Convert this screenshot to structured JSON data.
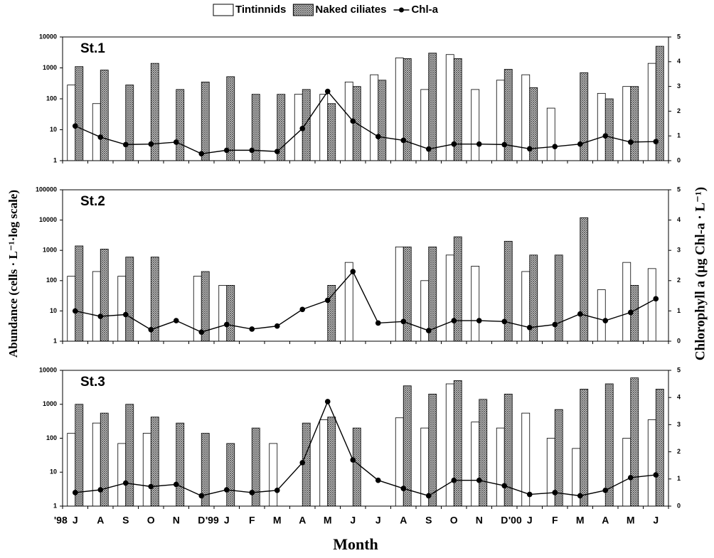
{
  "chart_data": {
    "type": "bar-line",
    "xlabel": "Month",
    "ylabel": "Abundance (cells · L⁻¹·log scale)",
    "y2label": "Chlorophyll a (μg Chl-a · L⁻¹)",
    "log_scale": true,
    "categories": [
      "J",
      "A",
      "S",
      "O",
      "N",
      "D",
      "J",
      "F",
      "M",
      "A",
      "M",
      "J",
      "J",
      "A",
      "S",
      "O",
      "N",
      "D",
      "J",
      "F",
      "M",
      "A",
      "M",
      "J"
    ],
    "year_marks": [
      "'98",
      null,
      null,
      null,
      null,
      null,
      "'99",
      null,
      null,
      null,
      null,
      null,
      null,
      null,
      null,
      null,
      null,
      null,
      "'00",
      null,
      null,
      null,
      null,
      null
    ],
    "series": [
      {
        "name": "Tintinnids",
        "kind": "bar",
        "color": "#ffffff",
        "values": [
          [
            280,
            70,
            null,
            null,
            null,
            null,
            null,
            null,
            null,
            140,
            140,
            350,
            600,
            2100,
            200,
            2700,
            200,
            400,
            600,
            50,
            null,
            150,
            250,
            1400
          ],
          [
            140,
            200,
            140,
            null,
            null,
            140,
            70,
            null,
            null,
            null,
            null,
            400,
            null,
            1300,
            100,
            700,
            300,
            null,
            200,
            null,
            null,
            50,
            400,
            250
          ],
          [
            140,
            280,
            70,
            140,
            null,
            null,
            null,
            null,
            70,
            null,
            350,
            null,
            null,
            400,
            200,
            4000,
            300,
            200,
            550,
            100,
            50,
            null,
            100,
            350
          ]
        ]
      },
      {
        "name": "Naked ciliates",
        "kind": "hatched-bar",
        "color": "#555555",
        "values": [
          [
            1100,
            850,
            280,
            1400,
            200,
            350,
            520,
            140,
            140,
            200,
            70,
            250,
            400,
            2000,
            3000,
            2000,
            null,
            900,
            230,
            null,
            700,
            100,
            250,
            5000
          ],
          [
            1400,
            1100,
            600,
            600,
            null,
            200,
            70,
            null,
            null,
            null,
            70,
            null,
            null,
            1300,
            1300,
            2800,
            null,
            2000,
            700,
            700,
            12000,
            null,
            70,
            null
          ],
          [
            1000,
            550,
            1000,
            420,
            280,
            140,
            70,
            200,
            null,
            280,
            420,
            200,
            null,
            3500,
            2000,
            5000,
            1400,
            2000,
            null,
            700,
            2800,
            4000,
            6000,
            2800
          ]
        ]
      },
      {
        "name": "Chl-a",
        "kind": "line",
        "axis": "y2",
        "color": "#000000",
        "values": [
          [
            1.4,
            0.95,
            0.65,
            0.67,
            0.75,
            0.28,
            0.42,
            0.42,
            0.37,
            1.3,
            2.8,
            1.6,
            0.97,
            0.82,
            0.47,
            0.67,
            0.67,
            0.65,
            0.48,
            0.57,
            0.67,
            1.0,
            0.75,
            0.77
          ],
          [
            1.0,
            0.82,
            0.88,
            0.38,
            0.68,
            0.3,
            0.55,
            0.4,
            0.5,
            1.05,
            1.35,
            2.3,
            0.6,
            0.65,
            0.35,
            0.68,
            0.68,
            0.65,
            0.45,
            0.55,
            0.9,
            0.68,
            0.95,
            1.4
          ],
          [
            0.5,
            0.6,
            0.85,
            0.72,
            0.8,
            0.38,
            0.6,
            0.5,
            0.58,
            1.6,
            3.85,
            1.7,
            0.95,
            0.65,
            0.38,
            0.95,
            0.95,
            0.75,
            0.43,
            0.5,
            0.38,
            0.58,
            1.05,
            1.15
          ]
        ]
      }
    ],
    "panels": [
      {
        "title": "St.1",
        "ylim": [
          1,
          10000
        ],
        "yticks": [
          1,
          10,
          100,
          1000,
          10000
        ],
        "y2lim": [
          0,
          5
        ],
        "y2ticks": [
          0,
          1,
          2,
          3,
          4,
          5
        ]
      },
      {
        "title": "St.2",
        "ylim": [
          1,
          100000
        ],
        "yticks": [
          1,
          10,
          100,
          1000,
          10000,
          100000
        ],
        "y2lim": [
          0,
          5
        ],
        "y2ticks": [
          0,
          1,
          2,
          3,
          4,
          5
        ]
      },
      {
        "title": "St.3",
        "ylim": [
          1,
          10000
        ],
        "yticks": [
          1,
          10,
          100,
          1000,
          10000
        ],
        "y2lim": [
          0,
          5
        ],
        "y2ticks": [
          0,
          1,
          2,
          3,
          4,
          5
        ]
      }
    ]
  }
}
